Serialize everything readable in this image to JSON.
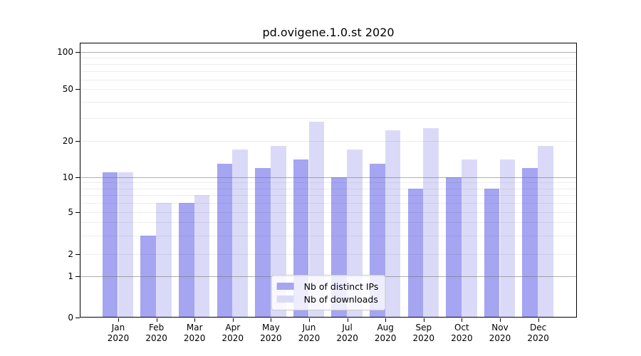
{
  "figure": {
    "title": "pd.ovigene.1.0.st 2020"
  },
  "chart_data": {
    "type": "bar",
    "title": "pd.ovigene.1.0.st 2020",
    "categories": [
      "Jan",
      "Feb",
      "Mar",
      "Apr",
      "May",
      "Jun",
      "Jul",
      "Aug",
      "Sep",
      "Oct",
      "Nov",
      "Dec"
    ],
    "x_tick_year": "2020",
    "series": [
      {
        "name": "Nb of distinct IPs",
        "color": "#a5a5f2",
        "values": [
          11,
          3,
          6,
          13,
          12,
          14,
          10,
          13,
          8,
          10,
          8,
          12
        ]
      },
      {
        "name": "Nb of downloads",
        "color": "#dadaf8",
        "values": [
          11,
          6,
          7,
          17,
          18,
          28,
          17,
          24,
          25,
          14,
          14,
          18
        ]
      }
    ],
    "xlabel": "",
    "ylabel": "",
    "yscale": "log-like (linear from 0 to 1, logarithmic above 1)",
    "ytick_labels": [
      0,
      1,
      2,
      5,
      10,
      20,
      50,
      100
    ],
    "grid_major_values": [
      1,
      10,
      100
    ],
    "grid_minor_values": [
      2,
      3,
      4,
      5,
      6,
      7,
      8,
      9,
      20,
      30,
      40,
      50,
      60,
      70,
      80,
      90
    ],
    "ylim": [
      0,
      120
    ],
    "grid": "on",
    "legend_position": "lower center"
  },
  "colors": {
    "background": "#ffffff",
    "axis": "#000000",
    "grid_major": "rgba(110,110,110,0.55)",
    "grid_minor": "rgba(60,60,60,0.09)",
    "legend_border": "#c9c9c9"
  }
}
